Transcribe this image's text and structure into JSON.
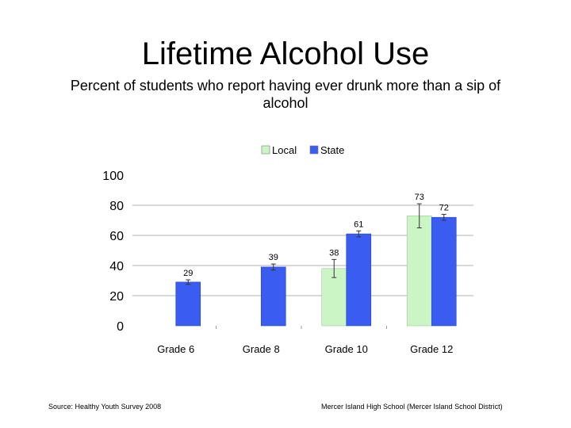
{
  "title": "Lifetime Alcohol Use",
  "subtitle": "Percent of students who report having ever drunk more than a sip of alcohol",
  "footer": {
    "source": "Source: Healthy Youth Survey 2008",
    "institution": "Mercer Island High School (Mercer Island School District)"
  },
  "colors": {
    "local": "#ccf5c6",
    "state": "#3a5cf0",
    "grid": "#b0b0b0"
  },
  "chart_data": {
    "type": "bar",
    "categories": [
      "Grade 6",
      "Grade 8",
      "Grade 10",
      "Grade 12"
    ],
    "series": [
      {
        "name": "Local",
        "values": [
          null,
          null,
          38,
          73
        ],
        "error": [
          null,
          null,
          6,
          8
        ]
      },
      {
        "name": "State",
        "values": [
          29,
          39,
          61,
          72
        ],
        "error": [
          1.5,
          2,
          2,
          2
        ]
      }
    ],
    "data_labels": {
      "Local": [
        "",
        "",
        "38",
        "73"
      ],
      "State": [
        "29",
        "39",
        "61",
        "72"
      ]
    },
    "y_ticks": [
      "0",
      "20",
      "40",
      "60",
      "80",
      "100"
    ],
    "ylim": [
      0,
      100
    ],
    "grid": true,
    "legend": "top-center"
  }
}
